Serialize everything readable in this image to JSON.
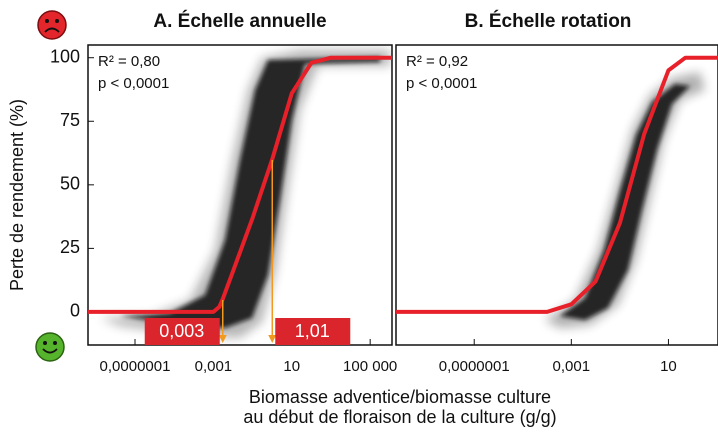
{
  "chart_data": [
    {
      "type": "line",
      "title": "A. Échelle annuelle",
      "ylabel": "Perte de rendement (%)",
      "xlabel": [
        "Biomasse adventice/biomasse culture",
        "au début de floraison de la culture (g/g)"
      ],
      "xlog": true,
      "xlim": [
        4e-10,
        1300000.0
      ],
      "ylim": [
        -13,
        105
      ],
      "xticks": [
        {
          "value": 1e-07,
          "label": "0,0000001"
        },
        {
          "value": 0.001,
          "label": "0,001"
        },
        10,
        {
          "value": 100000,
          "label": "100 000"
        }
      ],
      "yticks": [
        0,
        25,
        50,
        75,
        100
      ],
      "annotations": [
        "R² = 0,80",
        "p < 0,0001"
      ],
      "thresholds": [
        {
          "value": 0.003,
          "label": "0,003"
        },
        {
          "value": 1.01,
          "label": "1,01"
        }
      ],
      "series": [
        {
          "color": "#e8202a",
          "x": [
            4e-10,
            0.0001,
            0.001,
            0.002,
            0.003,
            0.01,
            0.1,
            1,
            10,
            100,
            1000,
            1300000.0
          ],
          "values": [
            0,
            0,
            0,
            2,
            5,
            16,
            37,
            60,
            86,
            98,
            100,
            100
          ]
        }
      ]
    },
    {
      "type": "line",
      "title": "B. Échelle rotation",
      "xlog": true,
      "xlim": [
        6e-11,
        1100
      ],
      "ylim": [
        -13,
        105
      ],
      "xticks": [
        {
          "value": 1e-07,
          "label": "0,0000001"
        },
        {
          "value": 0.001,
          "label": "0,001"
        },
        10
      ],
      "annotations": [
        "R² = 0,92",
        "p < 0,0001"
      ],
      "series": [
        {
          "color": "#e8202a",
          "x": [
            6e-11,
            0.0001,
            0.001,
            0.01,
            0.1,
            1,
            10,
            50,
            1100
          ],
          "values": [
            0,
            0,
            3,
            12,
            35,
            70,
            95,
            100,
            100
          ]
        }
      ]
    }
  ]
}
